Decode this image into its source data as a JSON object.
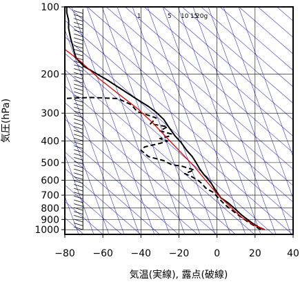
{
  "chart_data": {
    "type": "line",
    "xlabel": "気温(実線), 露点(破線)",
    "ylabel": "気圧(hPa)",
    "xlim": [
      -80,
      40
    ],
    "ylim": [
      100,
      1050
    ],
    "y_scale": "log",
    "x_ticks": [
      -80,
      -60,
      -40,
      -20,
      0,
      20,
      40
    ],
    "x_tick_labels": [
      "−80",
      "−60",
      "−40",
      "−20",
      "0",
      "20",
      "40"
    ],
    "y_ticks": [
      100,
      200,
      300,
      400,
      500,
      600,
      700,
      800,
      900,
      1000
    ],
    "y_tick_labels": [
      "100",
      "200",
      "300",
      "400",
      "500",
      "600",
      "700",
      "800",
      "900",
      "1000"
    ],
    "mixing_ratio_labels": [
      "1",
      "5",
      "10",
      "15",
      "20g"
    ],
    "grid": true,
    "series": [
      {
        "role": "temperature",
        "style": "solid",
        "color": "#000000",
        "points": [
          [
            25,
            1000
          ],
          [
            22,
            975
          ],
          [
            19,
            940
          ],
          [
            16,
            900
          ],
          [
            13,
            860
          ],
          [
            9,
            800
          ],
          [
            6,
            760
          ],
          [
            2,
            720
          ],
          [
            -1,
            660
          ],
          [
            -3,
            620
          ],
          [
            -5,
            590
          ],
          [
            -7,
            565
          ],
          [
            -9,
            535
          ],
          [
            -11,
            500
          ],
          [
            -13,
            470
          ],
          [
            -16,
            440
          ],
          [
            -19,
            405
          ],
          [
            -22,
            380
          ],
          [
            -25,
            350
          ],
          [
            -28,
            320
          ],
          [
            -32,
            297
          ],
          [
            -36,
            280
          ],
          [
            -42,
            260
          ],
          [
            -50,
            235
          ],
          [
            -58,
            212
          ],
          [
            -64,
            198
          ],
          [
            -70,
            185
          ],
          [
            -74,
            170
          ],
          [
            -75,
            160
          ],
          [
            -76,
            148
          ],
          [
            -77,
            138
          ],
          [
            -78,
            125
          ],
          [
            -78,
            115
          ],
          [
            -79,
            106
          ],
          [
            -79,
            100
          ]
        ]
      },
      {
        "role": "dewpoint",
        "style": "dashed",
        "color": "#000000",
        "points": [
          [
            23,
            1000
          ],
          [
            20,
            965
          ],
          [
            16,
            920
          ],
          [
            12,
            870
          ],
          [
            8,
            820
          ],
          [
            4,
            770
          ],
          [
            0,
            710
          ],
          [
            -2,
            680
          ],
          [
            -6,
            650
          ],
          [
            -8,
            620
          ],
          [
            -10,
            600
          ],
          [
            -13,
            580
          ],
          [
            -17,
            560
          ],
          [
            -12,
            540
          ],
          [
            -18,
            520
          ],
          [
            -24,
            510
          ],
          [
            -28,
            490
          ],
          [
            -36,
            470
          ],
          [
            -40,
            440
          ],
          [
            -38,
            425
          ],
          [
            -30,
            410
          ],
          [
            -26,
            400
          ],
          [
            -30,
            390
          ],
          [
            -25,
            380
          ],
          [
            -24,
            372
          ],
          [
            -30,
            360
          ],
          [
            -26,
            345
          ],
          [
            -35,
            335
          ],
          [
            -32,
            315
          ],
          [
            -42,
            295
          ],
          [
            -45,
            275
          ],
          [
            -52,
            258
          ],
          [
            -66,
            255
          ],
          [
            -82,
            258
          ]
        ]
      },
      {
        "role": "parcel",
        "style": "solid",
        "color": "#e00000",
        "points": [
          [
            25,
            1000
          ],
          [
            19,
            950
          ],
          [
            13,
            880
          ],
          [
            9,
            820
          ],
          [
            5,
            760
          ],
          [
            0,
            690
          ],
          [
            -6,
            600
          ],
          [
            -12,
            520
          ],
          [
            -19,
            450
          ],
          [
            -26,
            390
          ],
          [
            -34,
            330
          ],
          [
            -42,
            285
          ],
          [
            -52,
            245
          ],
          [
            -62,
            210
          ],
          [
            -72,
            175
          ],
          [
            -80,
            155
          ]
        ]
      }
    ]
  }
}
